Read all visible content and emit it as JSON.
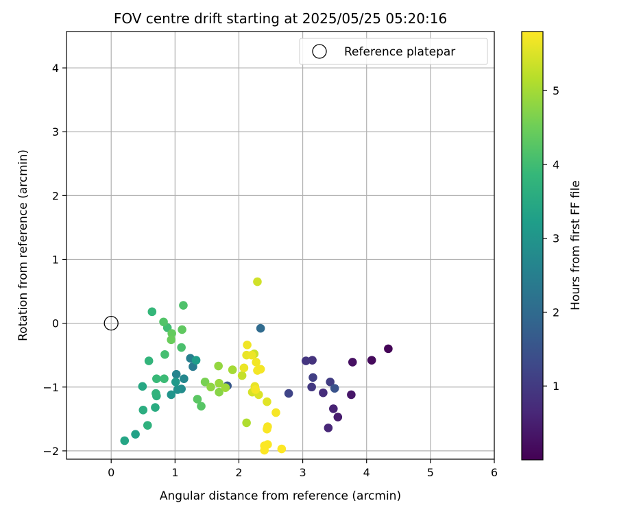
{
  "chart_data": {
    "type": "scatter",
    "title": "FOV centre drift starting at 2025/05/25 05:20:16",
    "xlabel": "Angular distance from reference (arcmin)",
    "ylabel": "Rotation from reference (arcmin)",
    "xlim": [
      -0.7,
      6.0
    ],
    "ylim": [
      -2.13,
      4.57
    ],
    "xticks": [
      0,
      1,
      2,
      3,
      4,
      5,
      6
    ],
    "yticks": [
      -2,
      -1,
      0,
      1,
      2,
      3,
      4
    ],
    "grid": true,
    "legend": {
      "position": "top-right",
      "entries": [
        "Reference platepar"
      ]
    },
    "reference": {
      "x": 0,
      "y": 0
    },
    "colorbar": {
      "label": "Hours from first FF file",
      "colormap": "viridis",
      "range": [
        0.0,
        5.8
      ],
      "ticks": [
        1,
        2,
        3,
        4,
        5
      ],
      "colors": [
        "#440154",
        "#482878",
        "#3e4989",
        "#31688e",
        "#26828e",
        "#1f9e89",
        "#35b779",
        "#6ece58",
        "#b5de2b",
        "#fde725"
      ]
    },
    "points": [
      {
        "x": 4.34,
        "y": -0.4,
        "t": 0.05
      },
      {
        "x": 4.08,
        "y": -0.58,
        "t": 0.15
      },
      {
        "x": 3.78,
        "y": -0.61,
        "t": 0.25
      },
      {
        "x": 3.76,
        "y": -1.12,
        "t": 0.35
      },
      {
        "x": 3.55,
        "y": -1.47,
        "t": 0.45
      },
      {
        "x": 3.48,
        "y": -1.34,
        "t": 0.55
      },
      {
        "x": 3.4,
        "y": -1.64,
        "t": 0.65
      },
      {
        "x": 3.32,
        "y": -1.09,
        "t": 0.75
      },
      {
        "x": 3.15,
        "y": -0.58,
        "t": 0.85
      },
      {
        "x": 3.05,
        "y": -0.59,
        "t": 0.9
      },
      {
        "x": 3.14,
        "y": -1.0,
        "t": 0.95
      },
      {
        "x": 3.43,
        "y": -0.92,
        "t": 1.05
      },
      {
        "x": 3.16,
        "y": -0.85,
        "t": 1.1
      },
      {
        "x": 2.78,
        "y": -1.1,
        "t": 1.2
      },
      {
        "x": 3.5,
        "y": -1.02,
        "t": 1.5
      },
      {
        "x": 1.82,
        "y": -0.98,
        "t": 1.6
      },
      {
        "x": 2.34,
        "y": -0.08,
        "t": 2.0
      },
      {
        "x": 1.28,
        "y": -0.68,
        "t": 2.4
      },
      {
        "x": 1.24,
        "y": -0.55,
        "t": 2.5
      },
      {
        "x": 1.02,
        "y": -0.8,
        "t": 2.6
      },
      {
        "x": 1.14,
        "y": -0.87,
        "t": 2.7
      },
      {
        "x": 1.1,
        "y": -1.03,
        "t": 2.8
      },
      {
        "x": 1.04,
        "y": -1.04,
        "t": 2.9
      },
      {
        "x": 0.94,
        "y": -1.12,
        "t": 3.0
      },
      {
        "x": 1.01,
        "y": -0.92,
        "t": 3.1
      },
      {
        "x": 1.33,
        "y": -0.58,
        "t": 3.2
      },
      {
        "x": 0.38,
        "y": -1.74,
        "t": 3.3
      },
      {
        "x": 0.21,
        "y": -1.84,
        "t": 3.4
      },
      {
        "x": 0.49,
        "y": -0.99,
        "t": 3.45
      },
      {
        "x": 0.69,
        "y": -1.32,
        "t": 3.55
      },
      {
        "x": 0.5,
        "y": -1.36,
        "t": 3.6
      },
      {
        "x": 0.71,
        "y": -1.14,
        "t": 3.65
      },
      {
        "x": 0.57,
        "y": -1.6,
        "t": 3.7
      },
      {
        "x": 0.7,
        "y": -1.1,
        "t": 3.75
      },
      {
        "x": 0.59,
        "y": -0.59,
        "t": 3.8
      },
      {
        "x": 0.64,
        "y": 0.18,
        "t": 3.85
      },
      {
        "x": 0.71,
        "y": -0.87,
        "t": 3.9
      },
      {
        "x": 0.83,
        "y": -0.87,
        "t": 3.95
      },
      {
        "x": 0.88,
        "y": -0.07,
        "t": 4.0
      },
      {
        "x": 0.84,
        "y": -0.49,
        "t": 4.05
      },
      {
        "x": 1.1,
        "y": -0.38,
        "t": 4.1
      },
      {
        "x": 1.13,
        "y": 0.28,
        "t": 4.15
      },
      {
        "x": 0.82,
        "y": 0.02,
        "t": 4.2
      },
      {
        "x": 1.41,
        "y": -1.3,
        "t": 4.25
      },
      {
        "x": 1.35,
        "y": -1.19,
        "t": 4.3
      },
      {
        "x": 1.11,
        "y": -0.1,
        "t": 4.35
      },
      {
        "x": 0.95,
        "y": -0.16,
        "t": 4.4
      },
      {
        "x": 0.94,
        "y": -0.26,
        "t": 4.45
      },
      {
        "x": 1.47,
        "y": -0.92,
        "t": 4.6
      },
      {
        "x": 1.69,
        "y": -1.08,
        "t": 4.75
      },
      {
        "x": 1.56,
        "y": -1.0,
        "t": 4.8
      },
      {
        "x": 1.68,
        "y": -0.67,
        "t": 4.85
      },
      {
        "x": 1.69,
        "y": -0.94,
        "t": 4.9
      },
      {
        "x": 1.79,
        "y": -1.01,
        "t": 4.95
      },
      {
        "x": 1.9,
        "y": -0.73,
        "t": 5.0
      },
      {
        "x": 2.12,
        "y": -1.56,
        "t": 5.1
      },
      {
        "x": 2.05,
        "y": -0.82,
        "t": 5.3
      },
      {
        "x": 2.24,
        "y": -0.48,
        "t": 5.35
      },
      {
        "x": 2.29,
        "y": 0.65,
        "t": 5.4
      },
      {
        "x": 2.21,
        "y": -1.08,
        "t": 5.45
      },
      {
        "x": 2.31,
        "y": -1.12,
        "t": 5.5
      },
      {
        "x": 2.44,
        "y": -1.23,
        "t": 5.55
      },
      {
        "x": 2.25,
        "y": -0.99,
        "t": 5.6
      },
      {
        "x": 2.12,
        "y": -0.5,
        "t": 5.62
      },
      {
        "x": 2.08,
        "y": -0.7,
        "t": 5.64
      },
      {
        "x": 2.2,
        "y": -0.5,
        "t": 5.66
      },
      {
        "x": 2.13,
        "y": -0.34,
        "t": 5.68
      },
      {
        "x": 2.27,
        "y": -0.61,
        "t": 5.7
      },
      {
        "x": 2.29,
        "y": -0.74,
        "t": 5.71
      },
      {
        "x": 2.34,
        "y": -0.72,
        "t": 5.72
      },
      {
        "x": 2.26,
        "y": -1.04,
        "t": 5.73
      },
      {
        "x": 2.58,
        "y": -1.4,
        "t": 5.74
      },
      {
        "x": 2.45,
        "y": -1.62,
        "t": 5.75
      },
      {
        "x": 2.44,
        "y": -1.66,
        "t": 5.76
      },
      {
        "x": 2.45,
        "y": -1.9,
        "t": 5.77
      },
      {
        "x": 2.4,
        "y": -1.92,
        "t": 5.78
      },
      {
        "x": 2.4,
        "y": -1.99,
        "t": 5.79
      },
      {
        "x": 2.67,
        "y": -1.97,
        "t": 5.8
      }
    ]
  }
}
